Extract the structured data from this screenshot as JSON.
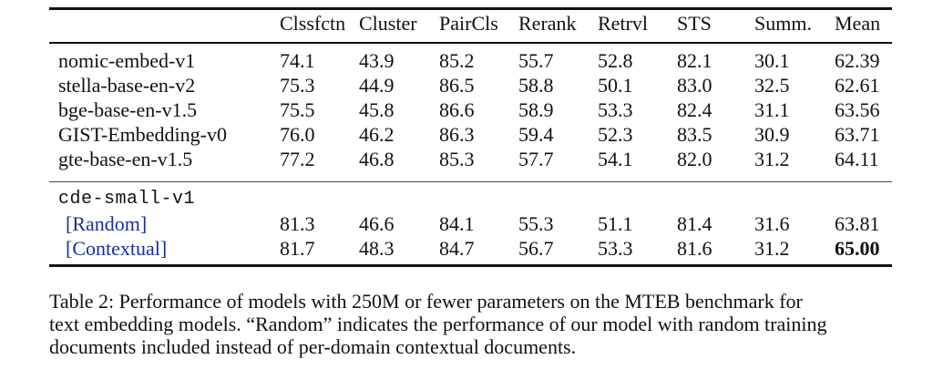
{
  "table": {
    "columns": [
      "Clssfctn",
      "Cluster",
      "PairCls",
      "Rerank",
      "Retrvl",
      "STS",
      "Summ.",
      "Mean"
    ],
    "rows": [
      {
        "model": "nomic-embed-v1",
        "values": [
          "74.1",
          "43.9",
          "85.2",
          "55.7",
          "52.8",
          "82.1",
          "30.1",
          "62.39"
        ]
      },
      {
        "model": "stella-base-en-v2",
        "values": [
          "75.3",
          "44.9",
          "86.5",
          "58.8",
          "50.1",
          "83.0",
          "32.5",
          "62.61"
        ]
      },
      {
        "model": "bge-base-en-v1.5",
        "values": [
          "75.5",
          "45.8",
          "86.6",
          "58.9",
          "53.3",
          "82.4",
          "31.1",
          "63.56"
        ]
      },
      {
        "model": "GIST-Embedding-v0",
        "values": [
          "76.0",
          "46.2",
          "86.3",
          "59.4",
          "52.3",
          "83.5",
          "30.9",
          "63.71"
        ]
      },
      {
        "model": "gte-base-en-v1.5",
        "values": [
          "77.2",
          "46.8",
          "85.3",
          "57.7",
          "54.1",
          "82.0",
          "31.2",
          "64.11"
        ]
      }
    ],
    "ours": {
      "model": "cde-small-v1",
      "rows": [
        {
          "label": "[Random]",
          "values": [
            "81.3",
            "46.6",
            "84.1",
            "55.3",
            "51.1",
            "81.4",
            "31.6",
            "63.81"
          ]
        },
        {
          "label": "[Contextual]",
          "values": [
            "81.7",
            "48.3",
            "84.7",
            "56.7",
            "53.3",
            "81.6",
            "31.2",
            "65.00"
          ]
        }
      ]
    }
  },
  "caption": {
    "lines": [
      "Table 2: Performance of models with 250M or fewer parameters on the MTEB benchmark for",
      "text embedding models. “Random” indicates the performance of our model with random training",
      "documents included instead of per-domain contextual documents."
    ]
  }
}
